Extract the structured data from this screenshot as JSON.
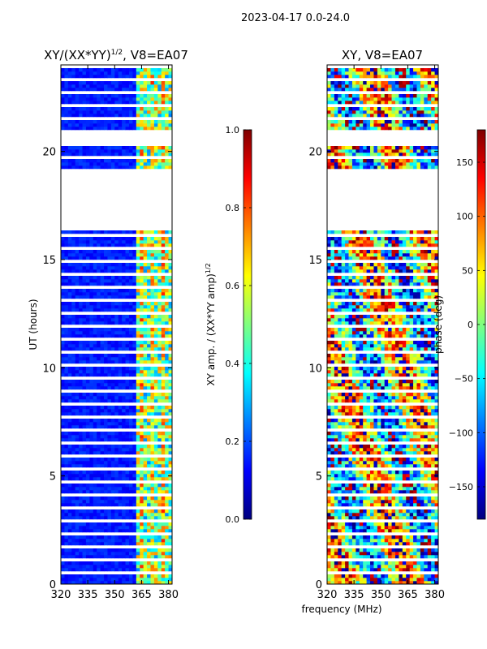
{
  "suptitle": "2023-04-17 0.0-24.0",
  "xlabel_shared": "frequency (MHz)",
  "chart_data": [
    {
      "type": "heatmap",
      "title": "XY/(XX*YY)^1/2, V8=EA07",
      "title_main": "XY/(XX*YY)",
      "title_exp": "1/2",
      "title_tail": ", V8=EA07",
      "ylabel": "UT (hours)",
      "xlim": [
        320,
        382
      ],
      "ylim": [
        0,
        24
      ],
      "xticks": [
        320,
        335,
        350,
        365,
        380
      ],
      "yticks": [
        0,
        5,
        10,
        15,
        20
      ],
      "colormap": "jet",
      "colorbar": {
        "label_main": "XY amp. / (XX*YY amp)",
        "label_exp": "1/2",
        "range": [
          0.0,
          1.0
        ],
        "ticks": [
          "0.0",
          "0.2",
          "0.4",
          "0.6",
          "0.8",
          "1.0"
        ],
        "tick_values": [
          0.0,
          0.2,
          0.4,
          0.6,
          0.8,
          1.0
        ]
      },
      "gaps_hours": [
        [
          16.4,
          19.0
        ],
        [
          20.4,
          21.0
        ]
      ],
      "high_band_mhz": [
        362,
        382
      ],
      "typical_low_value": 0.15,
      "typical_band_value": 0.5
    },
    {
      "type": "heatmap",
      "title": "XY, V8=EA07",
      "xlim": [
        320,
        382
      ],
      "ylim": [
        0,
        24
      ],
      "xticks": [
        320,
        335,
        350,
        365,
        380
      ],
      "yticks": [
        0,
        5,
        10,
        15,
        20
      ],
      "colormap": "jet",
      "colorbar": {
        "label": "phase (deg)",
        "range": [
          -180,
          180
        ],
        "ticks": [
          "−150",
          "−100",
          "−50",
          "0",
          "50",
          "100",
          "150"
        ],
        "tick_values": [
          -150,
          -100,
          -50,
          0,
          50,
          100,
          150
        ]
      },
      "gaps_hours": [
        [
          16.4,
          19.0
        ],
        [
          20.4,
          21.0
        ]
      ]
    }
  ]
}
